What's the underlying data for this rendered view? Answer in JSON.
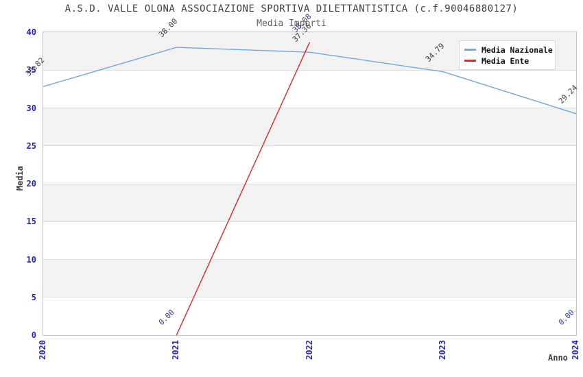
{
  "chart_data": {
    "type": "line",
    "title": "A.S.D. VALLE OLONA ASSOCIAZIONE SPORTIVA DILETTANTISTICA (c.f.90046880127)",
    "subtitle": "Media Importi",
    "xlabel": "Anno",
    "ylabel": "Media",
    "x": [
      "2020",
      "2021",
      "2022",
      "2023",
      "2024"
    ],
    "series": [
      {
        "name": "Media Nazionale",
        "color": "#6fa8dc",
        "label_color": "#3c3c3c",
        "values": [
          32.82,
          38.0,
          37.36,
          34.79,
          29.24
        ]
      },
      {
        "name": "Media Ente",
        "color": "#e62222",
        "label_color": "#333399",
        "values": [
          null,
          0.0,
          38.68,
          null,
          0.0
        ]
      }
    ],
    "ylim": [
      0,
      40
    ],
    "yticks": [
      0,
      5,
      10,
      15,
      20,
      25,
      30,
      35,
      40
    ],
    "grid": "horizontal gridlines with alternating shaded bands",
    "band_colors": [
      "#ffffff",
      "#f2f2f2"
    ],
    "tick_label_color": "#2323cd",
    "legend_position": "upper-right"
  }
}
